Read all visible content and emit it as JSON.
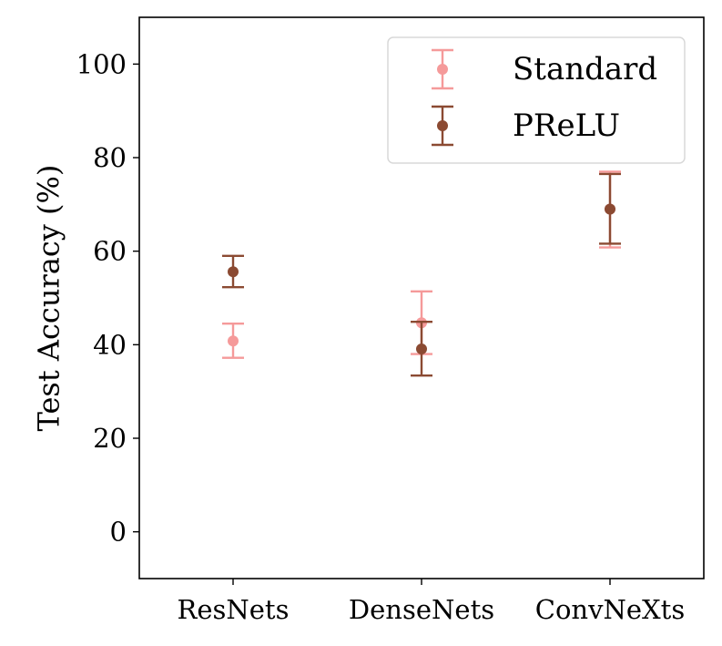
{
  "chart_data": {
    "type": "scatter",
    "title": "",
    "xlabel": "",
    "ylabel": "Test Accuracy (%)",
    "ylim": [
      -10,
      110
    ],
    "yticks": [
      0,
      20,
      40,
      60,
      80,
      100
    ],
    "categories": [
      "ResNets",
      "DenseNets",
      "ConvNeXts"
    ],
    "grid": false,
    "legend_position": "top-right",
    "series": [
      {
        "name": "Standard",
        "color": "#f59a9a",
        "values": [
          40.8,
          44.7,
          69.0
        ],
        "err_low": [
          37.2,
          38.0,
          60.8
        ],
        "err_high": [
          44.5,
          51.4,
          77.0
        ]
      },
      {
        "name": "PReLU",
        "color": "#8b4a32",
        "values": [
          55.6,
          39.1,
          69.0
        ],
        "err_low": [
          52.3,
          33.4,
          61.6
        ],
        "err_high": [
          59.0,
          44.9,
          76.5
        ]
      }
    ]
  }
}
